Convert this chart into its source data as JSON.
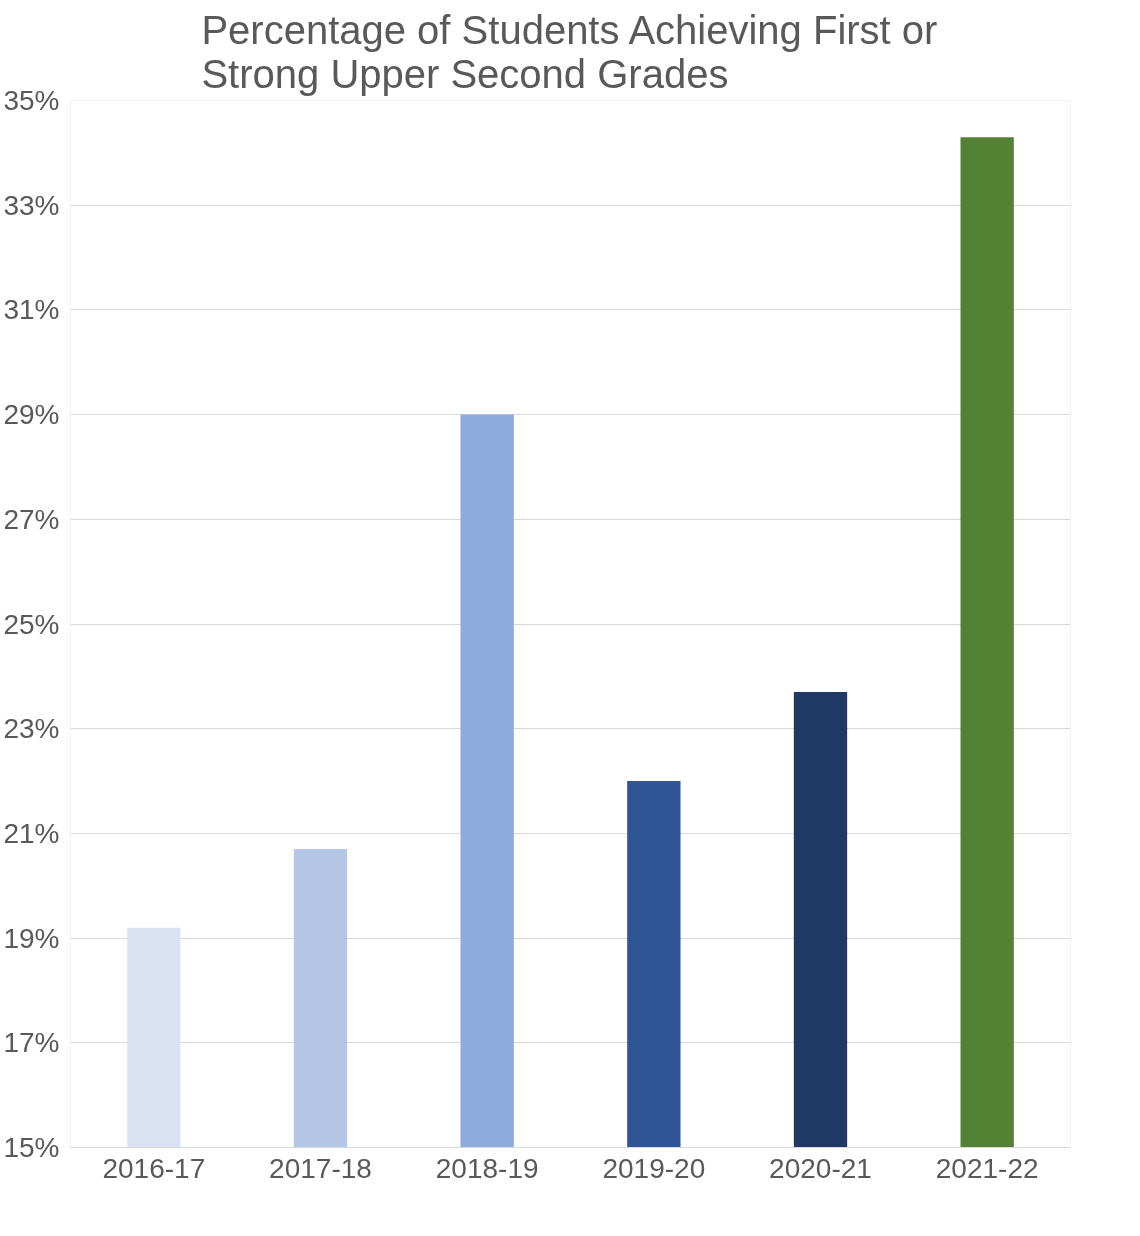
{
  "chart_data": {
    "type": "bar",
    "title": "Percentage of Students Achieving First or\nStrong Upper Second Grades",
    "categories": [
      "2016-17",
      "2017-18",
      "2018-19",
      "2019-20",
      "2020-21",
      "2021-22"
    ],
    "values": [
      19.2,
      20.7,
      29.0,
      22.0,
      23.7,
      34.3
    ],
    "colors": [
      "#dae3f3",
      "#b4c7e7",
      "#8faadc",
      "#2f5597",
      "#203864",
      "#548235"
    ],
    "ylim": [
      15,
      35
    ],
    "yticks": [
      {
        "value": 15,
        "label": "15%"
      },
      {
        "value": 17,
        "label": "17%"
      },
      {
        "value": 19,
        "label": "19%"
      },
      {
        "value": 21,
        "label": "21%"
      },
      {
        "value": 23,
        "label": "23%"
      },
      {
        "value": 25,
        "label": "25%"
      },
      {
        "value": 27,
        "label": "27%"
      },
      {
        "value": 29,
        "label": "29%"
      },
      {
        "value": 31,
        "label": "31%"
      },
      {
        "value": 33,
        "label": "33%"
      },
      {
        "value": 35,
        "label": "35%"
      }
    ],
    "grid": "y"
  }
}
